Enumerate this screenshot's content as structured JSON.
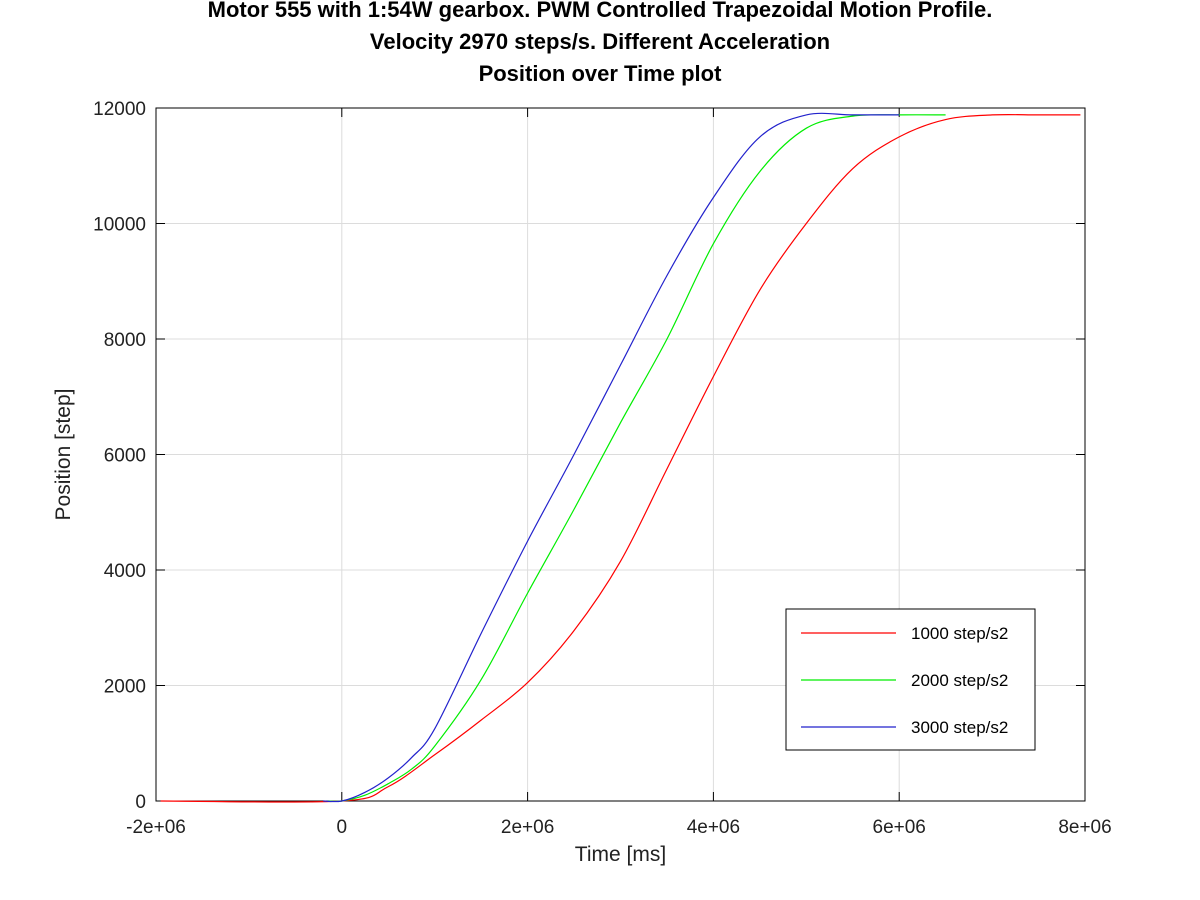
{
  "chart_data": {
    "type": "line",
    "title": [
      "Motor 555 with 1:54W gearbox. PWM Controlled Trapezoidal Motion Profile.",
      "Velocity 2970 steps/s. Different Acceleration",
      "Position over Time plot"
    ],
    "xlabel": "Time [ms]",
    "ylabel": "Position [step]",
    "xlim": [
      -2000000,
      8000000
    ],
    "ylim": [
      0,
      12000
    ],
    "xticks": [
      -2000000,
      0,
      2000000,
      4000000,
      6000000,
      8000000
    ],
    "xtick_labels": [
      "-2e+06",
      "0",
      "2e+06",
      "4e+06",
      "6e+06",
      "8e+06"
    ],
    "yticks": [
      0,
      2000,
      4000,
      6000,
      8000,
      10000,
      12000
    ],
    "ytick_labels": [
      "0",
      "2000",
      "4000",
      "6000",
      "8000",
      "10000",
      "12000"
    ],
    "grid": true,
    "legend_position": "bottom-right",
    "series": [
      {
        "name": "1000 step/s2",
        "color": "#ff0000",
        "x": [
          -1950000,
          0,
          500000,
          1000000,
          1500000,
          2000000,
          2500000,
          3000000,
          3500000,
          4000000,
          4500000,
          5000000,
          5500000,
          6000000,
          6500000,
          7000000,
          7500000,
          7950000
        ],
        "y": [
          0,
          0,
          250,
          800,
          1400,
          2050,
          2950,
          4150,
          5750,
          7350,
          8850,
          10000,
          10950,
          11500,
          11800,
          11880,
          11880,
          11880
        ]
      },
      {
        "name": "2000 step/s2",
        "color": "#00ee00",
        "x": [
          -150000,
          0,
          250000,
          500000,
          750000,
          1000000,
          1500000,
          2000000,
          2500000,
          3000000,
          3500000,
          4000000,
          4500000,
          5000000,
          5500000,
          6000000,
          6500000
        ],
        "y": [
          0,
          0,
          100,
          300,
          550,
          950,
          2100,
          3600,
          5050,
          6550,
          8000,
          9650,
          10900,
          11650,
          11860,
          11880,
          11880
        ]
      },
      {
        "name": "3000 step/s2",
        "color": "#2222cc",
        "x": [
          -200000,
          0,
          250000,
          500000,
          750000,
          1000000,
          1500000,
          2000000,
          2500000,
          3000000,
          3500000,
          4000000,
          4500000,
          5000000,
          5500000,
          6000000
        ],
        "y": [
          0,
          0,
          150,
          400,
          750,
          1250,
          2900,
          4500,
          6000,
          7550,
          9100,
          10450,
          11500,
          11880,
          11880,
          11880
        ]
      }
    ]
  }
}
